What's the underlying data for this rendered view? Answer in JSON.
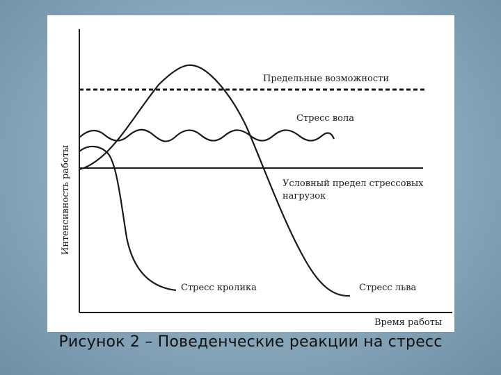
{
  "labels": {
    "limit_capabilities": "Предельные возможности",
    "ox_stress": "Стресс вола",
    "threshold_line1": "Условный предел стрессовых",
    "threshold_line2": "нагрузок",
    "rabbit_stress": "Стресс кролика",
    "lion_stress": "Стресс льва",
    "y_axis": "Интенсивность работы",
    "x_axis": "Время работы"
  },
  "caption": "Рисунок 2 – Поведенческие реакции на стресс",
  "colors": {
    "ink": "#1a1a1a",
    "panel": "#ffffff"
  }
}
